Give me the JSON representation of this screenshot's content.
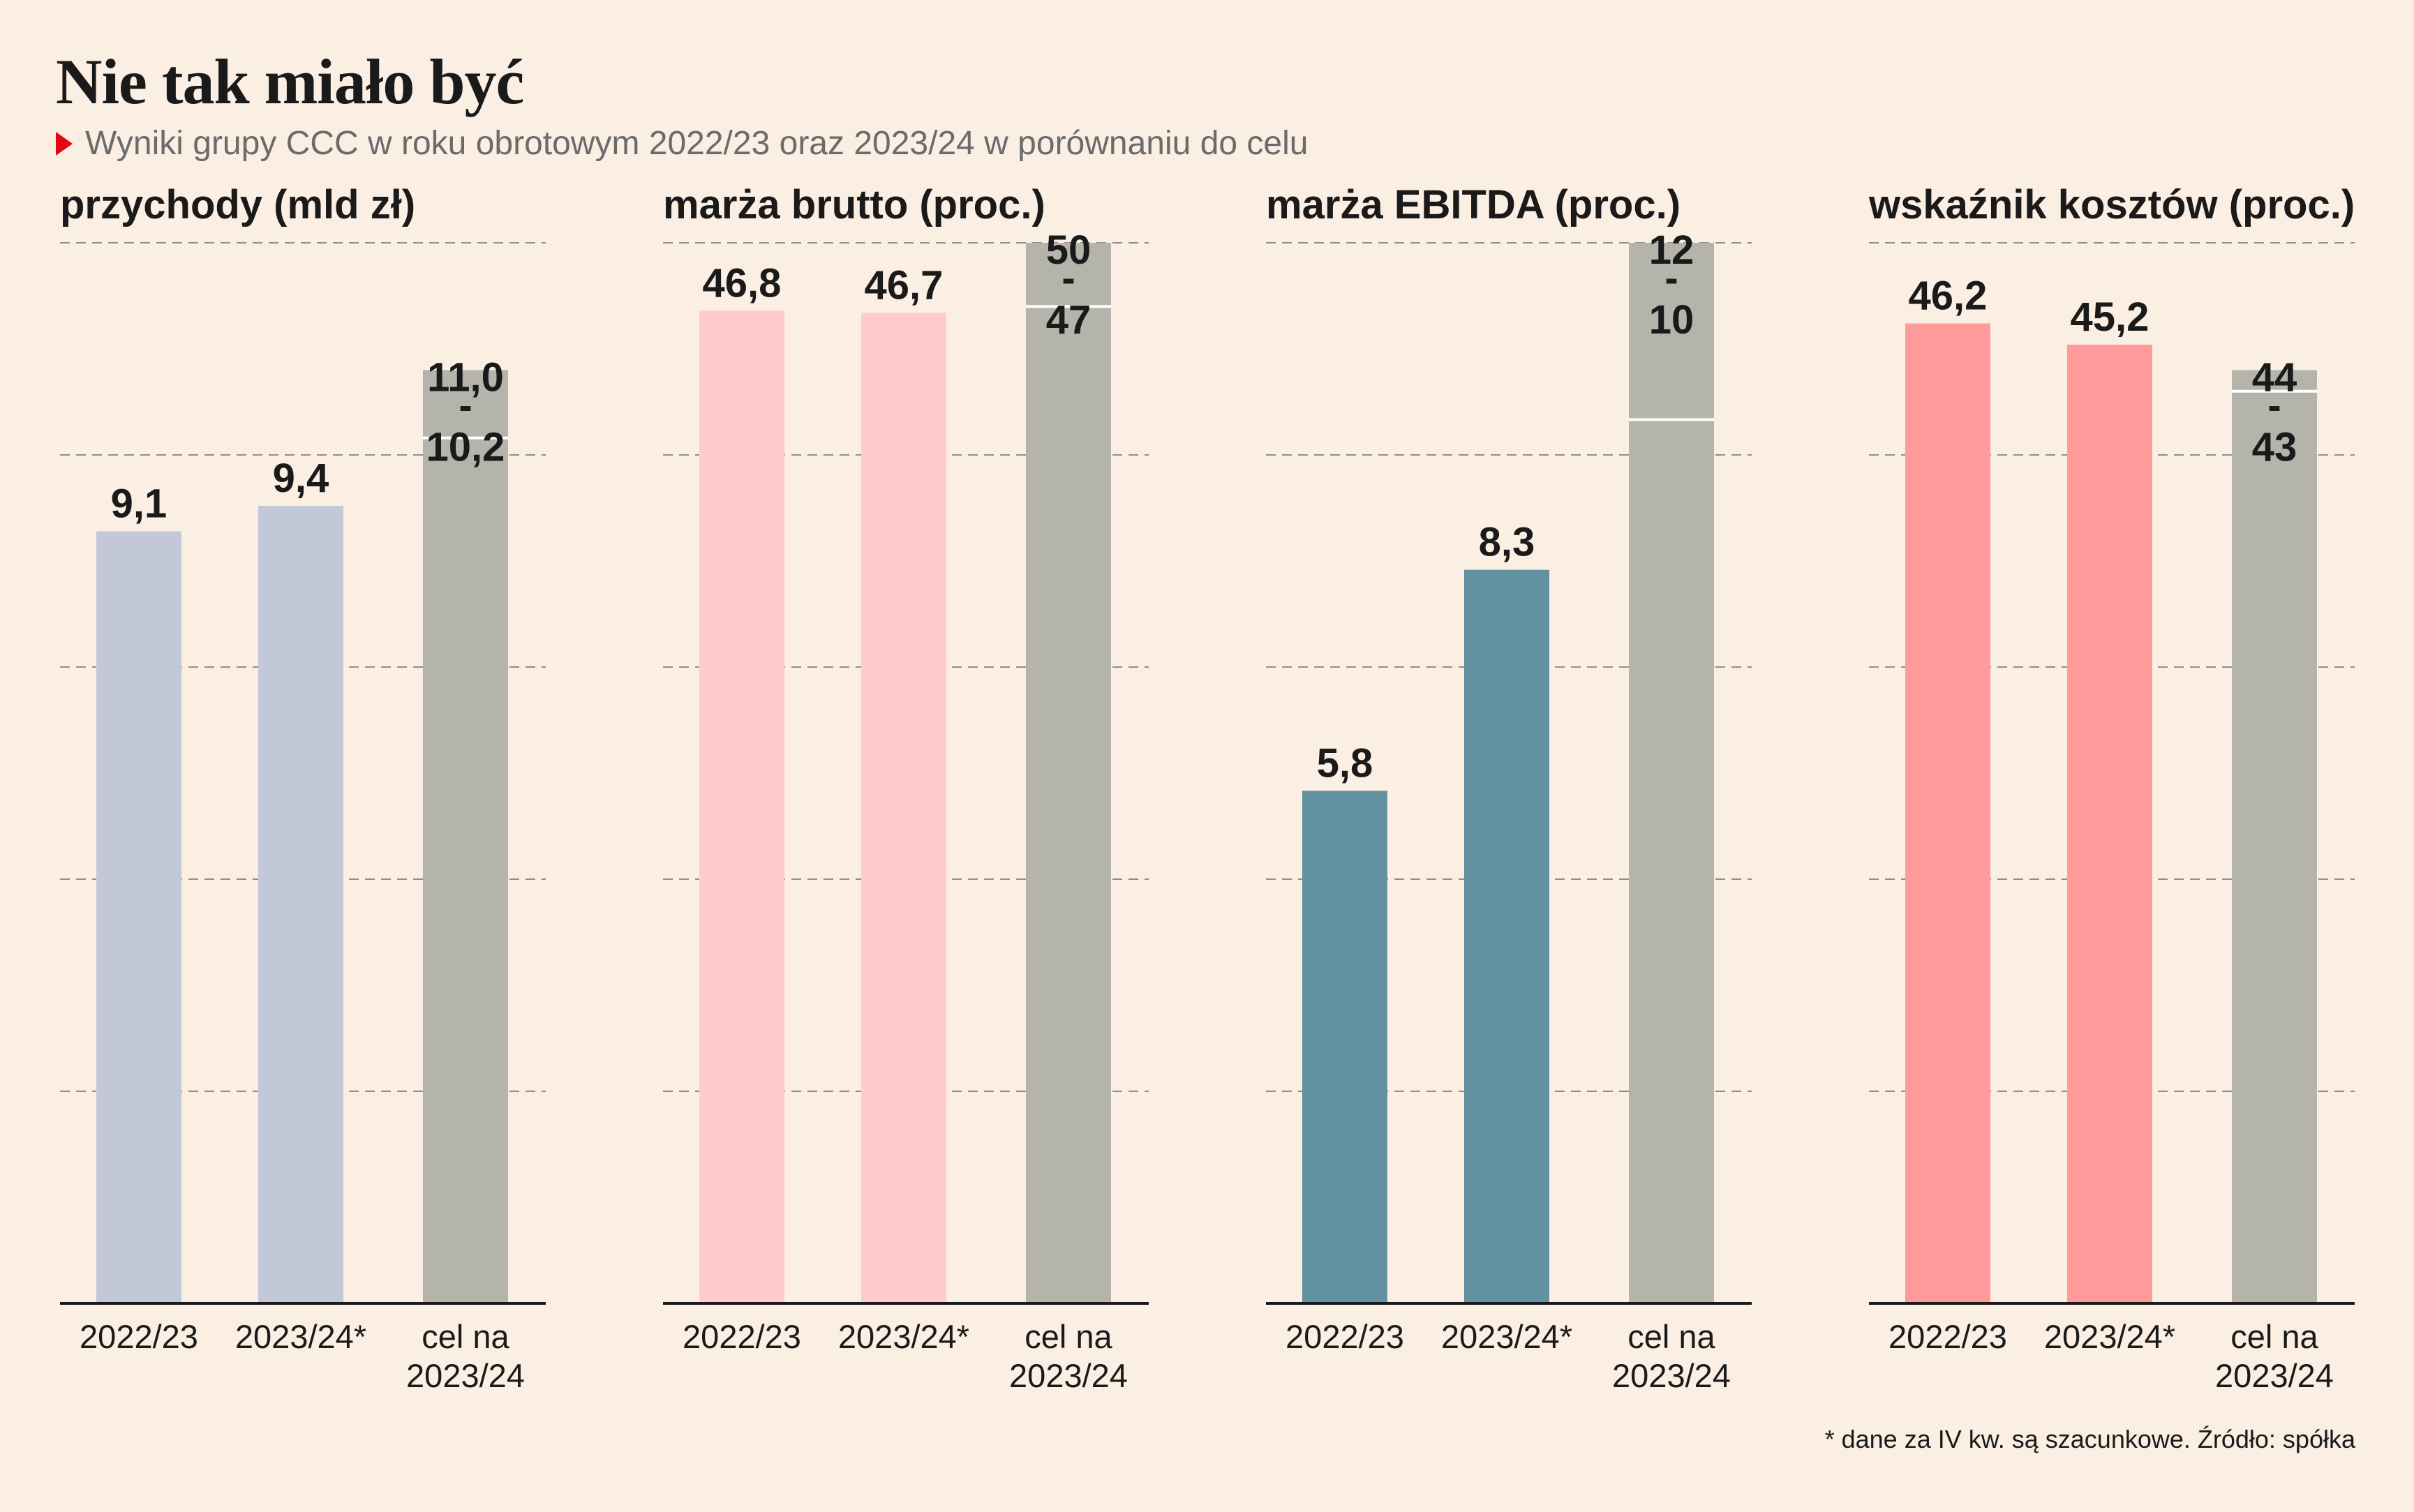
{
  "title": "Nie tak miało być",
  "subtitle": "Wyniki grupy CCC w roku obrotowym 2022/23 oraz 2023/24 w porównaniu do celu",
  "footnote": "* dane za IV kw. są szacunkowe. Źródło: spółka",
  "colors": {
    "background": "#fbeee2",
    "target_bar": "#b4b4ab",
    "accent_marker": "#e30613"
  },
  "chart_data": [
    {
      "type": "bar",
      "title": "przychody (mld zł)",
      "categories": [
        "2022/23",
        "2023/24*",
        "cel na 2023/24"
      ],
      "values": [
        9.1,
        9.4,
        null
      ],
      "value_labels": [
        "9,1",
        "9,4",
        null
      ],
      "target_range": {
        "low": 10.2,
        "high": 11.0,
        "low_label": "10,2",
        "high_label": "11,0",
        "separator": "-"
      },
      "ylim": [
        0,
        12.5
      ],
      "gridlines": [
        2.5,
        5,
        7.5,
        10,
        12.5
      ],
      "grid": true,
      "color": "#c3c8d9"
    },
    {
      "type": "bar",
      "title": "marża brutto (proc.)",
      "categories": [
        "2022/23",
        "2023/24*",
        "cel na 2023/24"
      ],
      "values": [
        46.8,
        46.7,
        null
      ],
      "value_labels": [
        "46,8",
        "46,7",
        null
      ],
      "target_range": {
        "low": 47,
        "high": 50,
        "low_label": "47",
        "high_label": "50",
        "separator": "-"
      },
      "ylim": [
        0,
        50
      ],
      "gridlines": [
        10,
        20,
        30,
        40,
        50
      ],
      "grid": true,
      "color": "#ffcccb"
    },
    {
      "type": "bar",
      "title": "marża EBITDA (proc.)",
      "categories": [
        "2022/23",
        "2023/24*",
        "cel na 2023/24"
      ],
      "values": [
        5.8,
        8.3,
        null
      ],
      "value_labels": [
        "5,8",
        "8,3",
        null
      ],
      "target_range": {
        "low": 10,
        "high": 12,
        "low_label": "10",
        "high_label": "12",
        "separator": "-"
      },
      "ylim": [
        0,
        12
      ],
      "gridlines": [
        2.4,
        4.8,
        7.2,
        9.6,
        12
      ],
      "grid": true,
      "color": "#6292a0"
    },
    {
      "type": "bar",
      "title": "wskaźnik kosztów (proc.)",
      "categories": [
        "2022/23",
        "2023/24*",
        "cel na 2023/24"
      ],
      "values": [
        46.2,
        45.2,
        null
      ],
      "value_labels": [
        "46,2",
        "45,2",
        null
      ],
      "target_range": {
        "low": 43,
        "high": 44,
        "low_label": "43",
        "high_label": "44",
        "separator": "-"
      },
      "ylim": [
        0,
        50
      ],
      "gridlines": [
        10,
        20,
        30,
        40,
        50
      ],
      "grid": true,
      "color": "#ff9a9a"
    }
  ]
}
